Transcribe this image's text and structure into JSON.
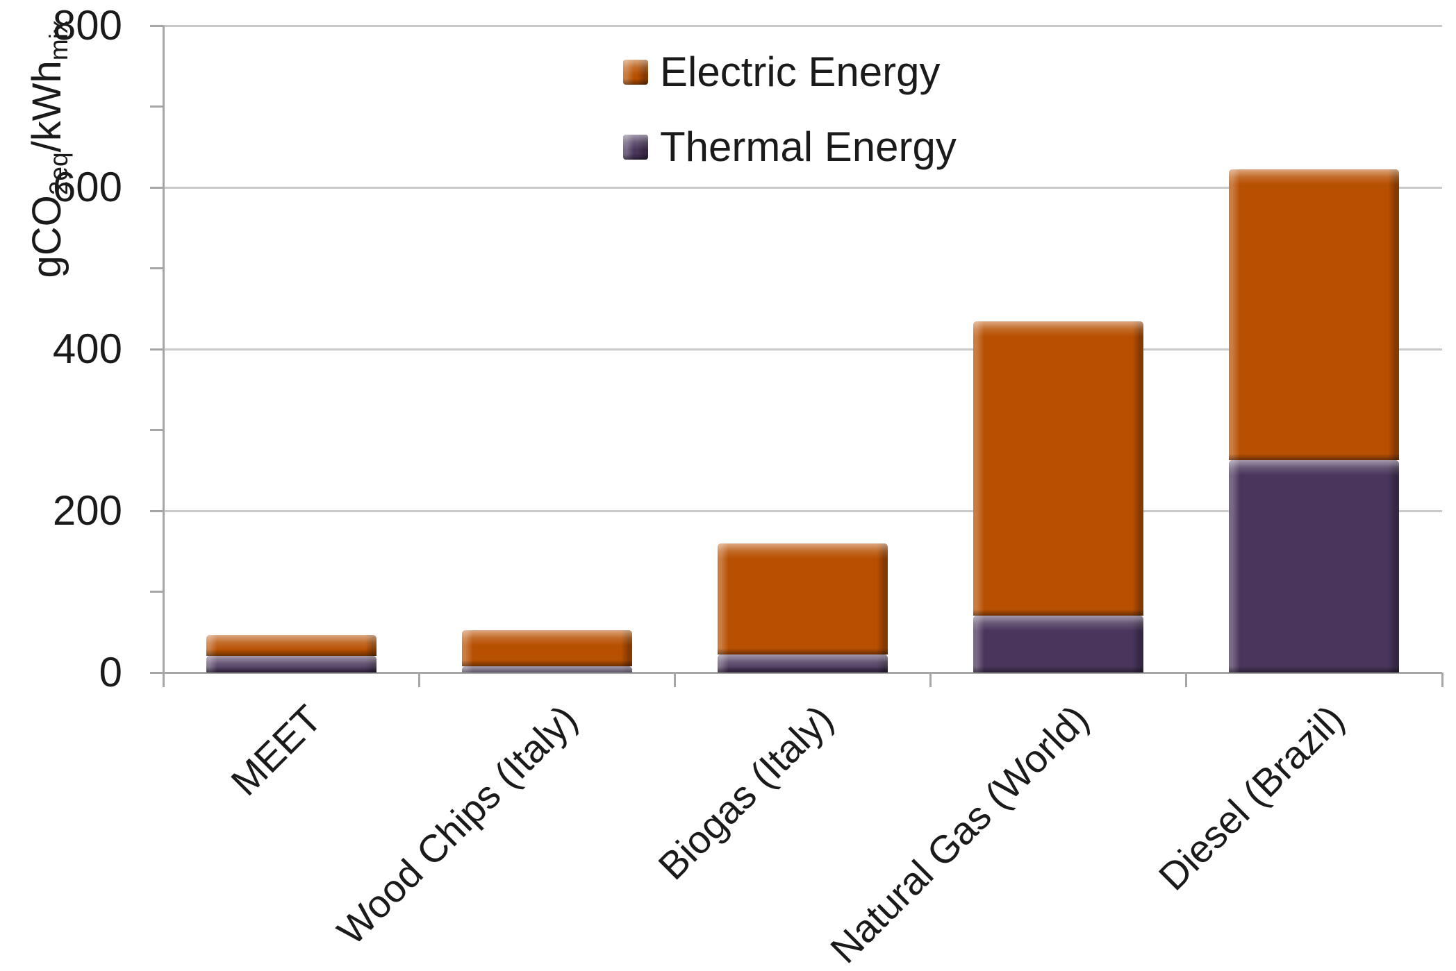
{
  "chart_data": {
    "type": "bar",
    "stacked": true,
    "title": "",
    "categories": [
      "MEET",
      "Wood Chips (Italy)",
      "Biogas (Italy)",
      "Natural Gas (World)",
      "Diesel (Brazil)"
    ],
    "series": [
      {
        "name": "Electric Energy",
        "color": "#B85001",
        "values": [
          25,
          44,
          138,
          364,
          359
        ]
      },
      {
        "name": "Thermal Energy",
        "color": "#4A365C",
        "values": [
          21,
          8,
          22,
          70,
          263
        ]
      }
    ],
    "stack_order_bottom_to_top": [
      "Thermal Energy",
      "Electric Energy"
    ],
    "ylabel_parts": [
      {
        "text": "gCO",
        "sub": false
      },
      {
        "text": "2eq",
        "sub": true
      },
      {
        "text": "/kWh",
        "sub": false
      },
      {
        "text": "mix",
        "sub": true
      }
    ],
    "ylim": [
      0,
      800
    ],
    "yticks": [
      0,
      200,
      400,
      600,
      800
    ],
    "minor_tick_unit": 100,
    "grid": true,
    "legend": {
      "position": "inside-top-center"
    },
    "colors": {
      "gridline": "#C9C9C9",
      "axis": "#A6A6A6",
      "text": "#1A1A1A",
      "background": "#FFFFFF"
    }
  }
}
